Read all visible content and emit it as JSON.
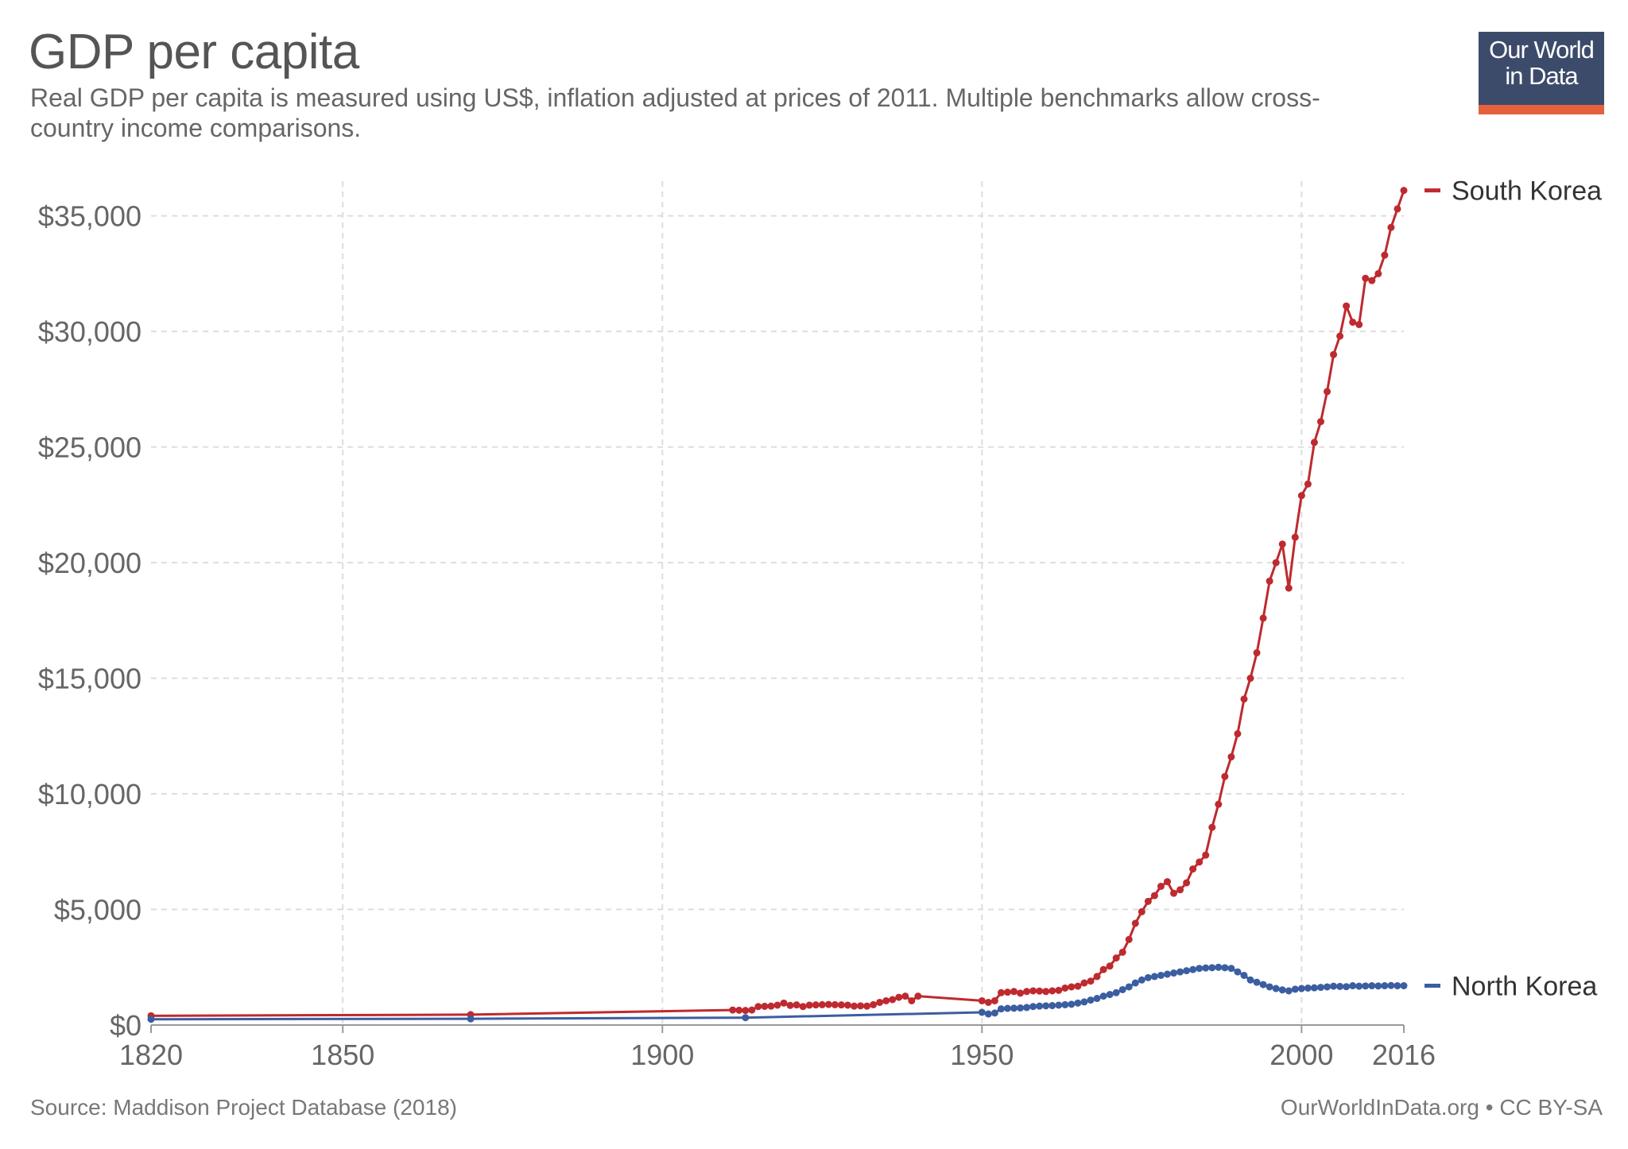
{
  "header": {
    "title": "GDP per capita",
    "subtitle": "Real GDP per capita is measured using US$, inflation adjusted at prices of 2011. Multiple benchmarks allow cross-country income comparisons."
  },
  "logo": {
    "line1": "Our World",
    "line2": "in Data",
    "bg_color": "#3d4b6b",
    "accent_color": "#e4613c"
  },
  "footer": {
    "source": "Source: Maddison Project Database (2018)",
    "credit": "OurWorldInData.org • CC BY-SA"
  },
  "chart_data": {
    "type": "line",
    "title": "GDP per capita",
    "xlabel": "",
    "ylabel": "",
    "xlim": [
      1820,
      2016
    ],
    "ylim": [
      0,
      36500
    ],
    "x_ticks": [
      1820,
      1850,
      1900,
      1950,
      2000,
      2016
    ],
    "y_ticks": [
      0,
      5000,
      10000,
      15000,
      20000,
      25000,
      30000,
      35000
    ],
    "y_tick_labels": [
      "$0",
      "$5,000",
      "$10,000",
      "$15,000",
      "$20,000",
      "$25,000",
      "$30,000",
      "$35,000"
    ],
    "grid": true,
    "legend": "right, at line ends",
    "series": [
      {
        "name": "South Korea",
        "color": "#be2a2f",
        "points": [
          [
            1820,
            400
          ],
          [
            1870,
            450
          ],
          [
            1911,
            650
          ],
          [
            1912,
            640
          ],
          [
            1913,
            630
          ],
          [
            1914,
            650
          ],
          [
            1915,
            800
          ],
          [
            1916,
            810
          ],
          [
            1917,
            820
          ],
          [
            1918,
            860
          ],
          [
            1919,
            950
          ],
          [
            1920,
            850
          ],
          [
            1921,
            870
          ],
          [
            1922,
            800
          ],
          [
            1923,
            860
          ],
          [
            1924,
            870
          ],
          [
            1925,
            880
          ],
          [
            1926,
            890
          ],
          [
            1927,
            880
          ],
          [
            1928,
            870
          ],
          [
            1929,
            860
          ],
          [
            1930,
            820
          ],
          [
            1931,
            830
          ],
          [
            1932,
            820
          ],
          [
            1933,
            880
          ],
          [
            1934,
            980
          ],
          [
            1935,
            1050
          ],
          [
            1936,
            1100
          ],
          [
            1937,
            1200
          ],
          [
            1938,
            1250
          ],
          [
            1939,
            1050
          ],
          [
            1940,
            1250
          ],
          [
            1950,
            1050
          ],
          [
            1951,
            980
          ],
          [
            1952,
            1050
          ],
          [
            1953,
            1400
          ],
          [
            1954,
            1420
          ],
          [
            1955,
            1450
          ],
          [
            1956,
            1380
          ],
          [
            1957,
            1450
          ],
          [
            1958,
            1480
          ],
          [
            1959,
            1470
          ],
          [
            1960,
            1450
          ],
          [
            1961,
            1480
          ],
          [
            1962,
            1500
          ],
          [
            1963,
            1600
          ],
          [
            1964,
            1650
          ],
          [
            1965,
            1680
          ],
          [
            1966,
            1820
          ],
          [
            1967,
            1900
          ],
          [
            1968,
            2100
          ],
          [
            1969,
            2400
          ],
          [
            1970,
            2550
          ],
          [
            1971,
            2900
          ],
          [
            1972,
            3150
          ],
          [
            1973,
            3700
          ],
          [
            1974,
            4400
          ],
          [
            1975,
            4900
          ],
          [
            1976,
            5350
          ],
          [
            1977,
            5600
          ],
          [
            1978,
            6000
          ],
          [
            1979,
            6200
          ],
          [
            1980,
            5700
          ],
          [
            1981,
            5850
          ],
          [
            1982,
            6150
          ],
          [
            1983,
            6750
          ],
          [
            1984,
            7050
          ],
          [
            1985,
            7350
          ],
          [
            1986,
            8550
          ],
          [
            1987,
            9550
          ],
          [
            1988,
            10750
          ],
          [
            1989,
            11600
          ],
          [
            1990,
            12600
          ],
          [
            1991,
            14100
          ],
          [
            1992,
            15000
          ],
          [
            1993,
            16100
          ],
          [
            1994,
            17600
          ],
          [
            1995,
            19200
          ],
          [
            1996,
            20000
          ],
          [
            1997,
            20800
          ],
          [
            1998,
            18900
          ],
          [
            1999,
            21100
          ],
          [
            2000,
            22900
          ],
          [
            2001,
            23400
          ],
          [
            2002,
            25200
          ],
          [
            2003,
            26100
          ],
          [
            2004,
            27400
          ],
          [
            2005,
            29000
          ],
          [
            2006,
            29800
          ],
          [
            2007,
            31100
          ],
          [
            2008,
            30400
          ],
          [
            2009,
            30300
          ],
          [
            2010,
            32300
          ],
          [
            2011,
            32200
          ],
          [
            2012,
            32500
          ],
          [
            2013,
            33300
          ],
          [
            2014,
            34500
          ],
          [
            2015,
            35300
          ],
          [
            2016,
            36100
          ]
        ]
      },
      {
        "name": "North Korea",
        "color": "#3b5ea0",
        "points": [
          [
            1820,
            250
          ],
          [
            1870,
            270
          ],
          [
            1913,
            320
          ],
          [
            1950,
            550
          ],
          [
            1951,
            480
          ],
          [
            1952,
            520
          ],
          [
            1953,
            700
          ],
          [
            1954,
            720
          ],
          [
            1955,
            730
          ],
          [
            1956,
            740
          ],
          [
            1957,
            760
          ],
          [
            1958,
            800
          ],
          [
            1959,
            820
          ],
          [
            1960,
            830
          ],
          [
            1961,
            840
          ],
          [
            1962,
            860
          ],
          [
            1963,
            880
          ],
          [
            1964,
            900
          ],
          [
            1965,
            950
          ],
          [
            1966,
            1000
          ],
          [
            1967,
            1080
          ],
          [
            1968,
            1150
          ],
          [
            1969,
            1250
          ],
          [
            1970,
            1320
          ],
          [
            1971,
            1400
          ],
          [
            1972,
            1530
          ],
          [
            1973,
            1650
          ],
          [
            1974,
            1820
          ],
          [
            1975,
            1950
          ],
          [
            1976,
            2050
          ],
          [
            1977,
            2100
          ],
          [
            1978,
            2150
          ],
          [
            1979,
            2200
          ],
          [
            1980,
            2250
          ],
          [
            1981,
            2300
          ],
          [
            1982,
            2350
          ],
          [
            1983,
            2400
          ],
          [
            1984,
            2450
          ],
          [
            1985,
            2470
          ],
          [
            1986,
            2480
          ],
          [
            1987,
            2500
          ],
          [
            1988,
            2480
          ],
          [
            1989,
            2450
          ],
          [
            1990,
            2300
          ],
          [
            1991,
            2150
          ],
          [
            1992,
            1950
          ],
          [
            1993,
            1850
          ],
          [
            1994,
            1750
          ],
          [
            1995,
            1650
          ],
          [
            1996,
            1580
          ],
          [
            1997,
            1520
          ],
          [
            1998,
            1480
          ],
          [
            1999,
            1550
          ],
          [
            2000,
            1580
          ],
          [
            2001,
            1600
          ],
          [
            2002,
            1610
          ],
          [
            2003,
            1630
          ],
          [
            2004,
            1650
          ],
          [
            2005,
            1680
          ],
          [
            2006,
            1670
          ],
          [
            2007,
            1660
          ],
          [
            2008,
            1700
          ],
          [
            2009,
            1680
          ],
          [
            2010,
            1690
          ],
          [
            2011,
            1700
          ],
          [
            2012,
            1690
          ],
          [
            2013,
            1700
          ],
          [
            2014,
            1710
          ],
          [
            2015,
            1700
          ],
          [
            2016,
            1700
          ]
        ]
      }
    ]
  }
}
